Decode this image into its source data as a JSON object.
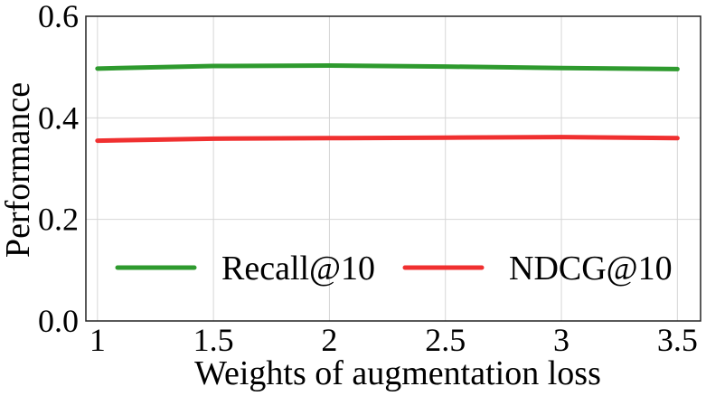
{
  "chart_data": {
    "type": "line",
    "xlabel": "Weights of augmentation loss",
    "ylabel": "Performance",
    "x": [
      1,
      1.5,
      2,
      2.5,
      3,
      3.5
    ],
    "x_tick_labels": [
      "1",
      "1.5",
      "2",
      "2.5",
      "3",
      "3.5"
    ],
    "xlim": [
      0.95,
      3.6
    ],
    "ylim": [
      0.0,
      0.6
    ],
    "y_ticks": [
      0.0,
      0.2,
      0.4,
      0.6
    ],
    "y_tick_labels": [
      "0.0",
      "0.2",
      "0.4",
      "0.6"
    ],
    "grid": true,
    "legend_position": "lower-center",
    "series": [
      {
        "name": "Recall@10",
        "color": "#2e9a2e",
        "values": [
          0.497,
          0.502,
          0.503,
          0.501,
          0.498,
          0.496
        ]
      },
      {
        "name": "NDCG@10",
        "color": "#f03030",
        "values": [
          0.355,
          0.359,
          0.36,
          0.361,
          0.362,
          0.36
        ]
      }
    ]
  }
}
